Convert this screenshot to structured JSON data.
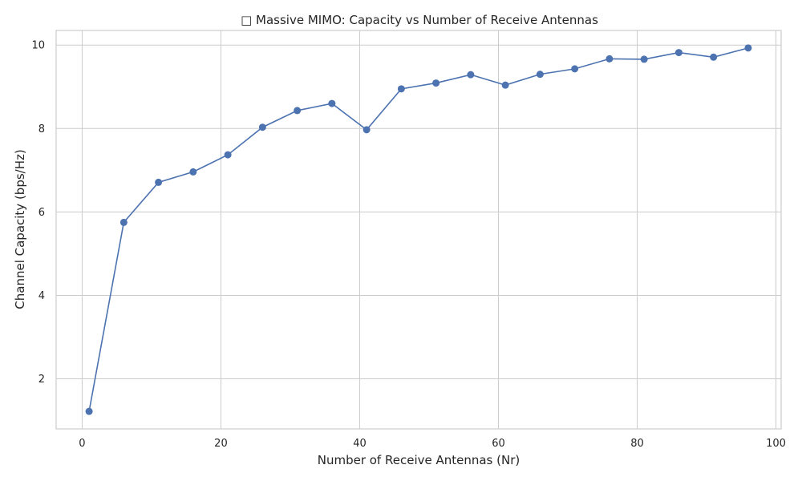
{
  "chart_data": {
    "type": "line",
    "title": "□ Massive MIMO: Capacity vs Number of Receive Antennas",
    "xlabel": "Number of Receive Antennas (Nr)",
    "ylabel": "Channel Capacity (bps/Hz)",
    "xlim": [
      -3.75,
      100.75
    ],
    "ylim": [
      0.8,
      10.35
    ],
    "xticks": [
      0,
      20,
      40,
      60,
      80,
      100
    ],
    "yticks": [
      2,
      4,
      6,
      8,
      10
    ],
    "grid": true,
    "series": [
      {
        "color": "#4c72b0",
        "marker": "circle",
        "x": [
          1,
          6,
          11,
          16,
          21,
          26,
          31,
          36,
          41,
          46,
          51,
          56,
          61,
          66,
          71,
          76,
          81,
          86,
          91,
          96
        ],
        "y": [
          1.22,
          5.75,
          6.71,
          6.96,
          7.37,
          8.03,
          8.43,
          8.6,
          7.97,
          8.95,
          9.09,
          9.29,
          9.04,
          9.3,
          9.43,
          9.67,
          9.66,
          9.82,
          9.71,
          9.93
        ]
      }
    ]
  }
}
